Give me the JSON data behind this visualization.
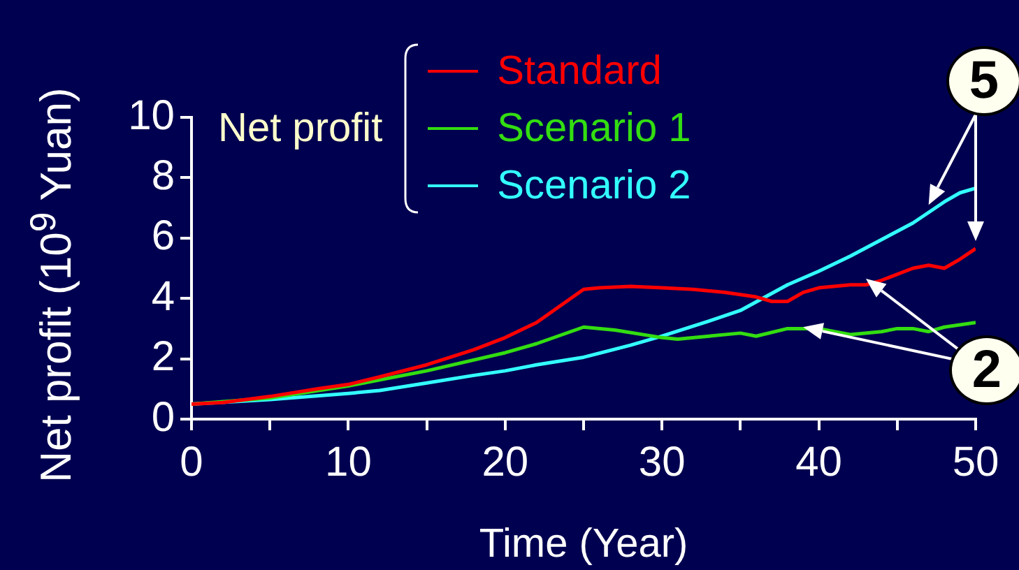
{
  "chart_data": {
    "type": "line",
    "xlabel": "Time (Year)",
    "ylabel": "Net profit (10$^{9}$ Yuan)",
    "legend_title": "Net profit",
    "legend": "top",
    "grid": false,
    "marker": "none",
    "line_style": "solid",
    "xlim": [
      0,
      50
    ],
    "ylim": [
      0,
      10
    ],
    "xticks": [
      0,
      {
        "value": 5,
        "label": null
      },
      10,
      {
        "value": 15,
        "label": null
      },
      20,
      {
        "value": 25,
        "label": null
      },
      30,
      {
        "value": 35,
        "label": null
      },
      40,
      {
        "value": 45,
        "label": null
      },
      50
    ],
    "yticks": [
      0,
      2,
      4,
      6,
      8,
      10
    ],
    "series": [
      {
        "name": "Standard",
        "color": "#ff0000",
        "x": [
          0,
          2,
          5,
          8,
          10,
          12,
          15,
          18,
          20,
          22,
          25,
          26,
          28,
          30,
          32,
          34,
          36,
          37,
          38,
          39,
          40,
          42,
          43,
          44,
          46,
          47,
          48,
          49,
          50
        ],
        "values": [
          0.5,
          0.55,
          0.75,
          1.0,
          1.15,
          1.4,
          1.8,
          2.3,
          2.7,
          3.2,
          4.3,
          4.35,
          4.4,
          4.35,
          4.3,
          4.2,
          4.05,
          3.9,
          3.9,
          4.2,
          4.35,
          4.45,
          4.45,
          4.6,
          5.0,
          5.1,
          5.0,
          5.3,
          5.65
        ]
      },
      {
        "name": "Scenario 1",
        "color": "#33dd11",
        "x": [
          0,
          5,
          10,
          15,
          20,
          22,
          25,
          27,
          30,
          31,
          33,
          35,
          36,
          38,
          40,
          42,
          44,
          45,
          46,
          47,
          48,
          50
        ],
        "values": [
          0.5,
          0.7,
          1.1,
          1.6,
          2.2,
          2.5,
          3.05,
          2.95,
          2.7,
          2.65,
          2.75,
          2.85,
          2.75,
          3.0,
          3.0,
          2.8,
          2.9,
          3.0,
          3.0,
          2.9,
          3.05,
          3.2
        ]
      },
      {
        "name": "Scenario 2",
        "color": "#33ffff",
        "x": [
          0,
          5,
          10,
          12,
          15,
          18,
          20,
          22,
          25,
          28,
          30,
          33,
          35,
          38,
          40,
          42,
          44,
          46,
          48,
          49,
          50
        ],
        "values": [
          0.5,
          0.65,
          0.85,
          0.95,
          1.2,
          1.45,
          1.6,
          1.8,
          2.05,
          2.45,
          2.75,
          3.25,
          3.6,
          4.45,
          4.9,
          5.4,
          5.95,
          6.5,
          7.2,
          7.5,
          7.65
        ]
      }
    ],
    "annotations": [
      {
        "text": "5",
        "x": 47,
        "y": 7.1
      },
      {
        "text": "2",
        "x": 43,
        "y": 4.65
      }
    ]
  }
}
